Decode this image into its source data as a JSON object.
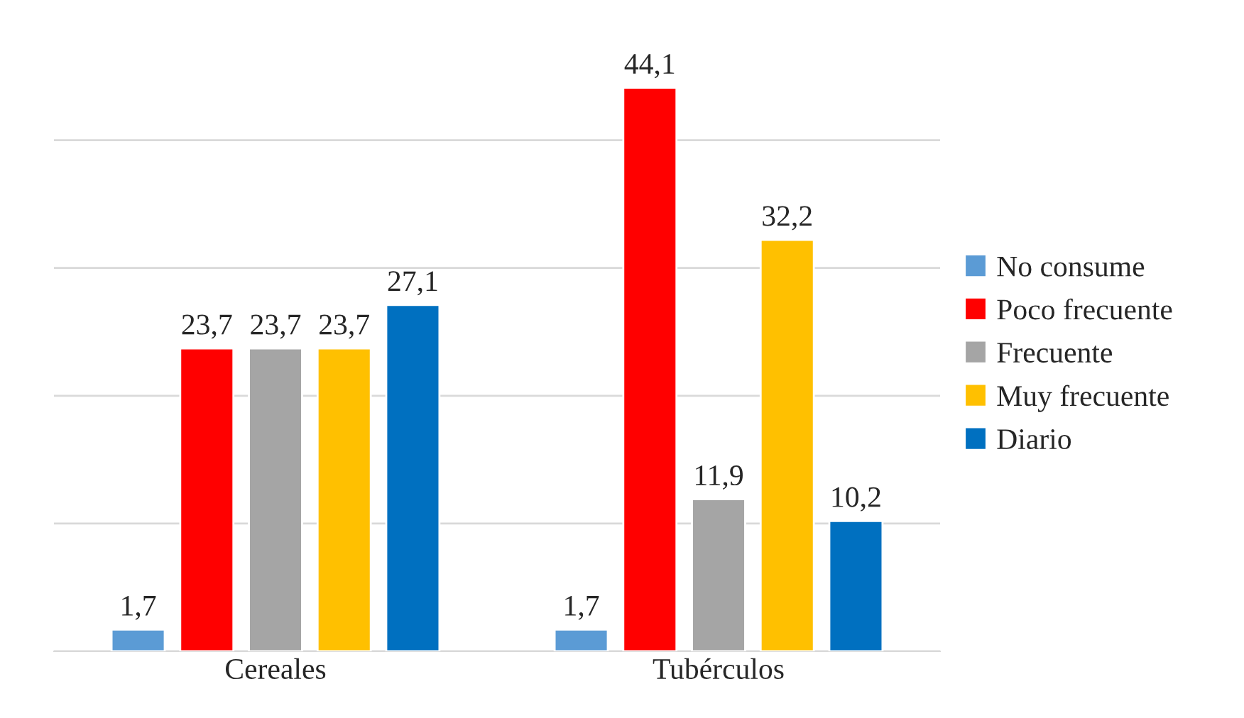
{
  "chart_data": {
    "type": "bar",
    "categories": [
      "Cereales",
      "Tubérculos"
    ],
    "series": [
      {
        "name": "No consume",
        "color": "#5b9bd5",
        "values": [
          1.7,
          1.7
        ],
        "value_labels": [
          "1,7",
          "1,7"
        ]
      },
      {
        "name": "Poco frecuente",
        "color": "#ff0000",
        "values": [
          23.7,
          44.1
        ],
        "value_labels": [
          "23,7",
          "44,1"
        ]
      },
      {
        "name": "Frecuente",
        "color": "#a5a5a5",
        "values": [
          23.7,
          11.9
        ],
        "value_labels": [
          "23,7",
          "11,9"
        ]
      },
      {
        "name": "Muy frecuente",
        "color": "#ffc000",
        "values": [
          23.7,
          32.2
        ],
        "value_labels": [
          "23,7",
          "32,2"
        ]
      },
      {
        "name": "Diario",
        "color": "#0070c0",
        "values": [
          27.1,
          10.2
        ],
        "value_labels": [
          "27,1",
          "10,2"
        ]
      }
    ],
    "grid": "y",
    "legend": "right",
    "tick_labels": "x"
  }
}
